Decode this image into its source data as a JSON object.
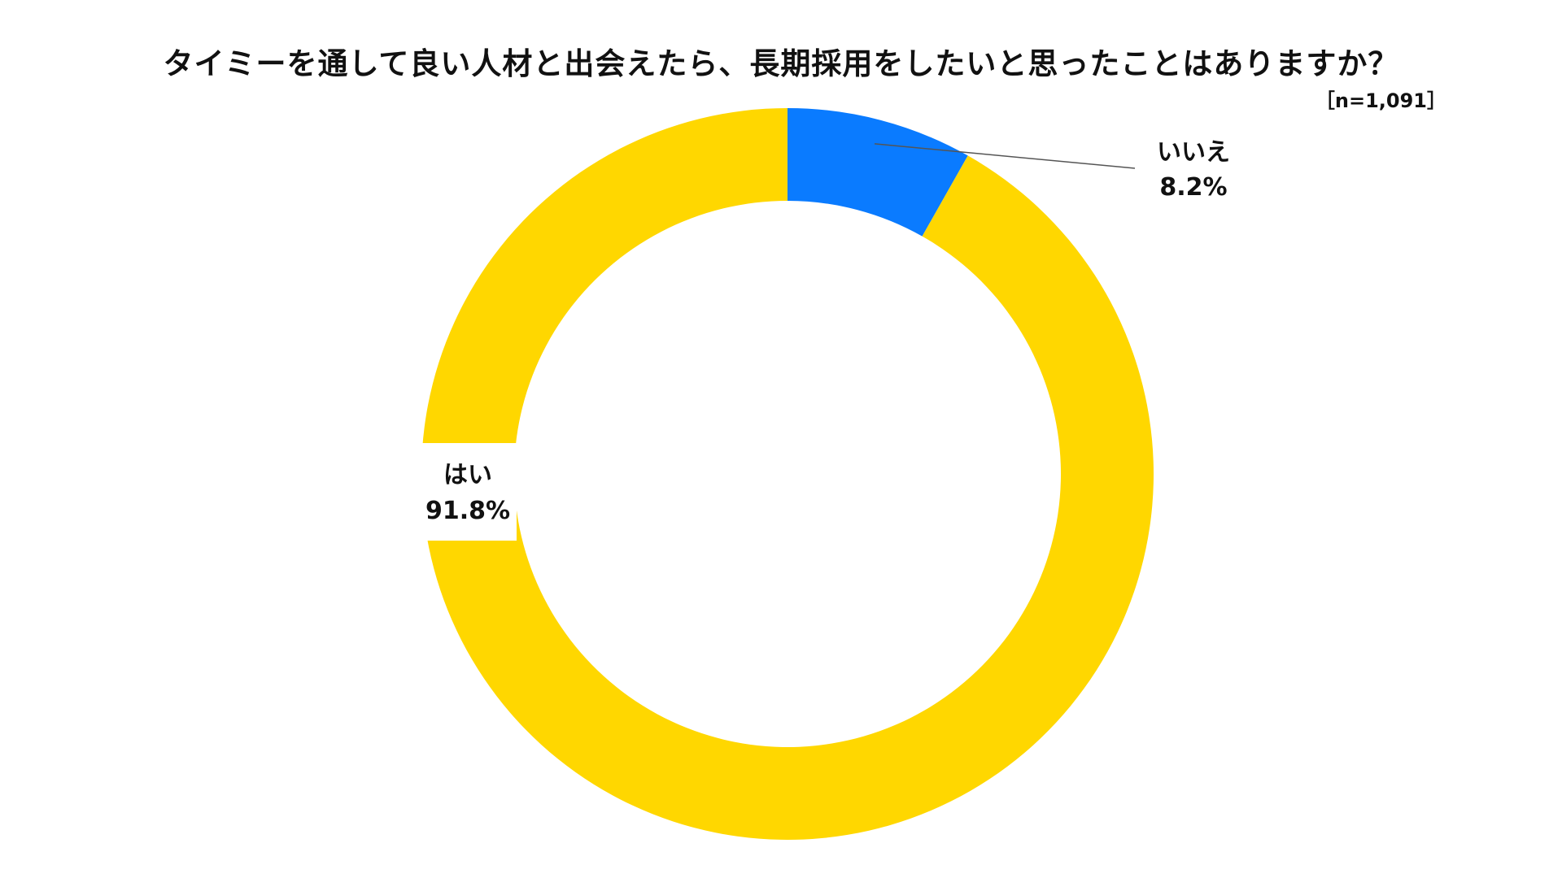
{
  "chart_data": {
    "type": "pie",
    "variant": "donut",
    "title": "タイミーを通して良い人材と出会えたら、長期採用をしたいと思ったことはありますか？",
    "sample_size": "［n=1,091］",
    "categories": [
      "いいえ",
      "はい"
    ],
    "values": [
      8.2,
      91.8
    ],
    "value_labels": [
      "8.2%",
      "91.8%"
    ],
    "colors": [
      "#0A7BFF",
      "#FFD700"
    ],
    "start": "top",
    "direction": "clockwise",
    "legend": "none",
    "grid": false
  }
}
